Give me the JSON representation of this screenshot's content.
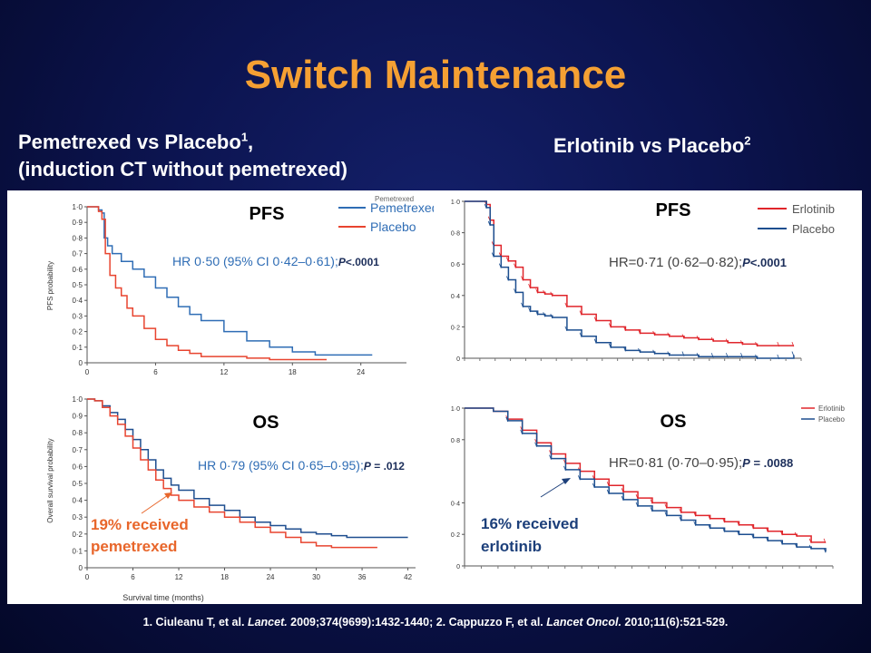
{
  "title": "Switch Maintenance",
  "left_heading": {
    "line1": "Pemetrexed vs Placebo",
    "line1_sup": "1",
    "line1_tail": ",",
    "line2": "(induction CT without pemetrexed)"
  },
  "right_heading": {
    "text": "Erlotinib vs Placebo",
    "sup": "2"
  },
  "citation": {
    "part1": "1. Ciuleanu T, et al. ",
    "journal1": "Lancet.",
    "part2": " 2009;374(9699):1432-1440; 2. Cappuzzo F, et al. ",
    "journal2": "Lancet Oncol.",
    "part3": " 2010;11(6):521-529."
  },
  "colors": {
    "pemetrexed": "#2f6db5",
    "placebo_left": "#e8442f",
    "erlotinib": "#e0252b",
    "placebo_right": "#1c4e8f",
    "title": "#f5a033",
    "callout_orange": "#e8662b",
    "callout_blue": "#1c3f7a"
  },
  "chart_data": [
    {
      "type": "line",
      "title": "PFS",
      "ylabel": "PFS probability",
      "xlabel": "",
      "x_ticks": [
        "0",
        "6",
        "12",
        "18",
        "24"
      ],
      "y_ticks": [
        "0",
        "0·1",
        "0·2",
        "0·3",
        "0·4",
        "0·5",
        "0·6",
        "0·7",
        "0·8",
        "0·9",
        "1·0"
      ],
      "xlim": [
        0,
        28
      ],
      "ylim": [
        0,
        1
      ],
      "legend": [
        "Pemetrexed",
        "Placebo"
      ],
      "legend_clipped": "Pemetrexed",
      "hr_text": "HR 0·50 (95% CI 0·42–0·61);",
      "p_label": "P",
      "p_text": "<.0001",
      "series": [
        {
          "name": "Pemetrexed",
          "color": "#2f6db5",
          "x": [
            0,
            0.5,
            1,
            1.3,
            1.5,
            1.8,
            2.2,
            3,
            4,
            5,
            6,
            7,
            8,
            9,
            10,
            12,
            14,
            16,
            18,
            20,
            22,
            25
          ],
          "y": [
            1,
            1,
            0.98,
            0.96,
            0.8,
            0.75,
            0.7,
            0.65,
            0.6,
            0.55,
            0.48,
            0.42,
            0.36,
            0.31,
            0.27,
            0.2,
            0.14,
            0.1,
            0.07,
            0.05,
            0.05,
            0.05
          ]
        },
        {
          "name": "Placebo",
          "color": "#e8442f",
          "x": [
            0,
            0.5,
            1,
            1.3,
            1.6,
            2,
            2.5,
            3,
            3.5,
            4,
            5,
            6,
            7,
            8,
            9,
            10,
            12,
            14,
            16,
            18,
            21
          ],
          "y": [
            1,
            1,
            0.97,
            0.92,
            0.7,
            0.56,
            0.48,
            0.43,
            0.35,
            0.3,
            0.22,
            0.15,
            0.11,
            0.08,
            0.06,
            0.04,
            0.04,
            0.03,
            0.02,
            0.02,
            0.02
          ]
        }
      ]
    },
    {
      "type": "line",
      "title": "OS",
      "ylabel": "Overall survival probability",
      "xlabel": "Survival time (months)",
      "x_ticks": [
        "0",
        "6",
        "12",
        "18",
        "24",
        "30",
        "36",
        "42"
      ],
      "y_ticks": [
        "0",
        "0·1",
        "0·2",
        "0·3",
        "0·4",
        "0·5",
        "0·6",
        "0·7",
        "0·8",
        "0·9",
        "1·0"
      ],
      "xlim": [
        0,
        43
      ],
      "ylim": [
        0,
        1
      ],
      "hr_text": "HR 0·79 (95% CI 0·65–0·95);",
      "p_label": "P",
      "p_text": " = .012",
      "callout": "19% received pemetrexed",
      "callout_line1": "19% received",
      "callout_line2": "pemetrexed",
      "series": [
        {
          "name": "Pemetrexed",
          "color": "#1f4e8f",
          "x": [
            0,
            1,
            2,
            3,
            4,
            5,
            6,
            7,
            8,
            9,
            10,
            11,
            12,
            14,
            16,
            18,
            20,
            22,
            24,
            26,
            28,
            30,
            32,
            34,
            36,
            38,
            42
          ],
          "y": [
            1,
            0.99,
            0.96,
            0.92,
            0.88,
            0.82,
            0.76,
            0.7,
            0.64,
            0.58,
            0.53,
            0.49,
            0.46,
            0.41,
            0.37,
            0.34,
            0.3,
            0.27,
            0.25,
            0.23,
            0.21,
            0.2,
            0.19,
            0.18,
            0.18,
            0.18,
            0.18
          ]
        },
        {
          "name": "Placebo",
          "color": "#e8442f",
          "x": [
            0,
            1,
            2,
            3,
            4,
            5,
            6,
            7,
            8,
            9,
            10,
            11,
            12,
            14,
            16,
            18,
            20,
            22,
            24,
            26,
            28,
            30,
            32,
            34,
            36,
            38
          ],
          "y": [
            1,
            0.99,
            0.95,
            0.9,
            0.85,
            0.78,
            0.71,
            0.64,
            0.58,
            0.52,
            0.47,
            0.43,
            0.4,
            0.36,
            0.33,
            0.3,
            0.27,
            0.24,
            0.21,
            0.18,
            0.15,
            0.13,
            0.12,
            0.12,
            0.12,
            0.12
          ]
        }
      ]
    },
    {
      "type": "line",
      "title": "PFS",
      "ylabel": "",
      "xlabel": "",
      "y_ticks": [
        "0",
        "0·2",
        "0·4",
        "0·6",
        "0·8",
        "1·0"
      ],
      "ylim": [
        0,
        1
      ],
      "legend": [
        "Erlotinib",
        "Placebo"
      ],
      "hr_text": "HR=0·71 (0·62–0·82);",
      "p_label": "P",
      "p_text": "<.0001",
      "series": [
        {
          "name": "Erlotinib",
          "color": "#e0252b",
          "x": [
            0,
            2,
            4,
            6,
            7,
            8,
            10,
            12,
            14,
            16,
            18,
            20,
            22,
            24,
            28,
            32,
            36,
            40,
            44,
            48,
            52,
            56,
            60,
            64,
            68,
            72,
            76,
            80,
            86,
            90
          ],
          "y": [
            1,
            1,
            1,
            0.98,
            0.88,
            0.72,
            0.65,
            0.62,
            0.58,
            0.5,
            0.45,
            0.42,
            0.41,
            0.4,
            0.33,
            0.28,
            0.24,
            0.2,
            0.18,
            0.16,
            0.15,
            0.14,
            0.13,
            0.12,
            0.11,
            0.1,
            0.09,
            0.08,
            0.08,
            0.08
          ]
        },
        {
          "name": "Placebo",
          "color": "#1c4e8f",
          "x": [
            0,
            2,
            4,
            6,
            7,
            8,
            10,
            12,
            14,
            16,
            18,
            20,
            22,
            24,
            28,
            32,
            36,
            40,
            44,
            48,
            52,
            56,
            60,
            64,
            68,
            72,
            76,
            80,
            86,
            90
          ],
          "y": [
            1,
            1,
            1,
            0.96,
            0.85,
            0.65,
            0.58,
            0.5,
            0.42,
            0.33,
            0.3,
            0.28,
            0.27,
            0.26,
            0.18,
            0.14,
            0.1,
            0.07,
            0.05,
            0.04,
            0.03,
            0.02,
            0.02,
            0.01,
            0.01,
            0.01,
            0.01,
            0.0,
            0.0,
            0.02
          ]
        }
      ]
    },
    {
      "type": "line",
      "title": "OS",
      "ylabel": "",
      "xlabel": "",
      "y_ticks": [
        "0",
        "0·2",
        "0·4",
        "0·8",
        "1·0"
      ],
      "ylim": [
        0,
        1
      ],
      "legend": [
        "Erlotinib",
        "Placebo"
      ],
      "hr_text": "HR=0·81 (0·70–0·95);",
      "p_label": "P",
      "p_text": " = .0088",
      "callout": "16% received erlotinib",
      "callout_line1": "16% received",
      "callout_line2": "erlotinib",
      "series": [
        {
          "name": "Erlotinib",
          "color": "#e0252b",
          "x": [
            0,
            4,
            8,
            12,
            16,
            20,
            24,
            28,
            32,
            36,
            40,
            44,
            48,
            52,
            56,
            60,
            64,
            68,
            72,
            76,
            80,
            84,
            88,
            92,
            96,
            100
          ],
          "y": [
            1,
            1,
            0.98,
            0.93,
            0.86,
            0.78,
            0.71,
            0.65,
            0.6,
            0.55,
            0.51,
            0.47,
            0.43,
            0.4,
            0.37,
            0.34,
            0.32,
            0.3,
            0.28,
            0.26,
            0.24,
            0.22,
            0.2,
            0.19,
            0.15,
            0.15
          ]
        },
        {
          "name": "Placebo",
          "color": "#1c4e8f",
          "x": [
            0,
            4,
            8,
            12,
            16,
            20,
            24,
            28,
            32,
            36,
            40,
            44,
            48,
            52,
            56,
            60,
            64,
            68,
            72,
            76,
            80,
            84,
            88,
            92,
            96,
            100
          ],
          "y": [
            1,
            1,
            0.98,
            0.92,
            0.84,
            0.76,
            0.68,
            0.61,
            0.55,
            0.5,
            0.46,
            0.42,
            0.38,
            0.35,
            0.32,
            0.29,
            0.26,
            0.24,
            0.22,
            0.2,
            0.18,
            0.16,
            0.14,
            0.12,
            0.11,
            0.09
          ]
        }
      ]
    }
  ]
}
